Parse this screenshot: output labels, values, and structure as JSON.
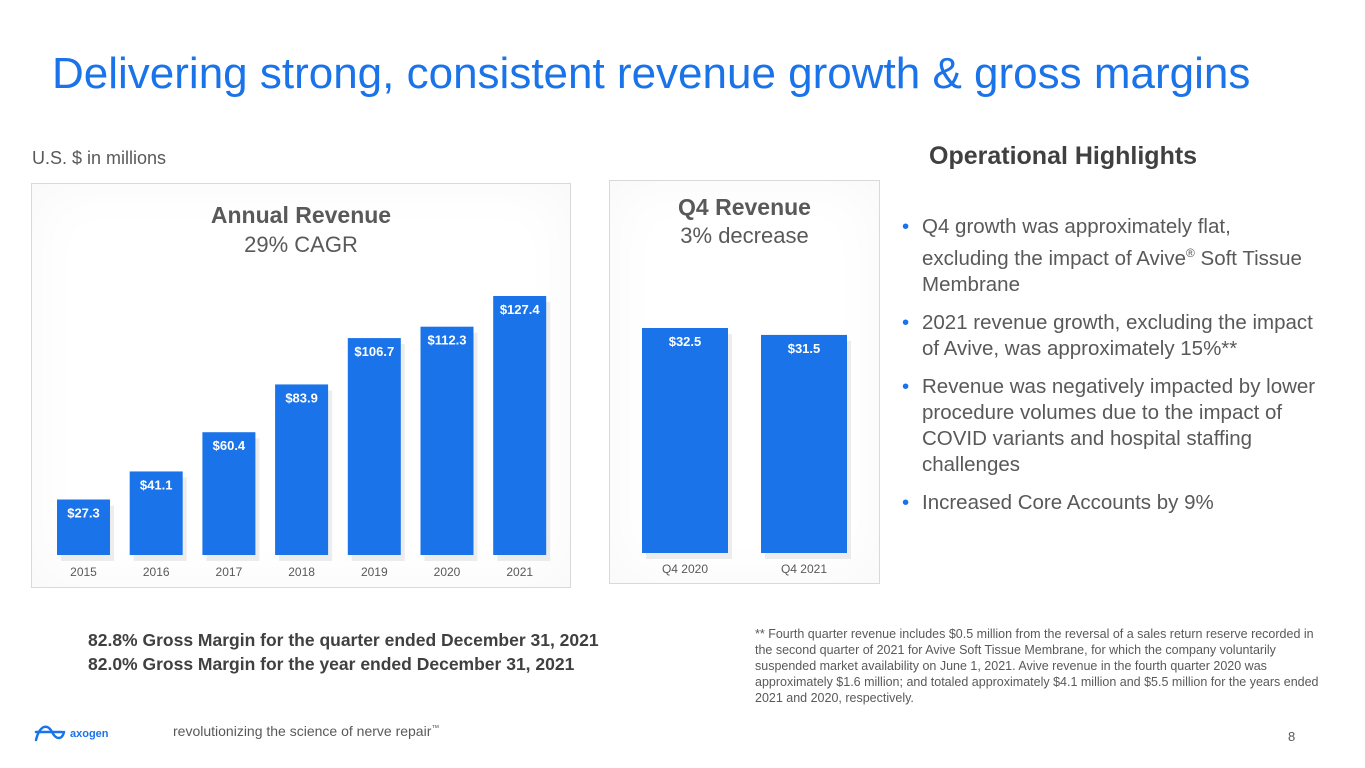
{
  "slide": {
    "title": "Delivering strong, consistent revenue growth & gross margins",
    "units": "U.S. $ in millions",
    "page_number": "8",
    "tagline": "revolutionizing the science of nerve repair",
    "tagline_mark": "™",
    "logo_text": "axogen"
  },
  "annual_chart": {
    "title": "Annual Revenue",
    "subtitle": "29% CAGR"
  },
  "q4_chart": {
    "title": "Q4 Revenue",
    "subtitle": "3% decrease"
  },
  "chart_data": [
    {
      "type": "bar",
      "title": "Annual Revenue",
      "subtitle": "29% CAGR",
      "categories": [
        "2015",
        "2016",
        "2017",
        "2018",
        "2019",
        "2020",
        "2021"
      ],
      "values": [
        27.3,
        41.1,
        60.4,
        83.9,
        106.7,
        112.3,
        127.4
      ],
      "labels": [
        "$27.3",
        "$41.1",
        "$60.4",
        "$83.9",
        "$106.7",
        "$112.3",
        "$127.4"
      ],
      "ylim": [
        0,
        127.4
      ],
      "color": "#1a73e8",
      "grid": false
    },
    {
      "type": "bar",
      "title": "Q4 Revenue",
      "subtitle": "3% decrease",
      "categories": [
        "Q4 2020",
        "Q4 2021"
      ],
      "values": [
        32.5,
        31.5
      ],
      "labels": [
        "$32.5",
        "$31.5"
      ],
      "ylim": [
        0,
        32.5
      ],
      "color": "#1a73e8",
      "grid": false
    }
  ],
  "highlights": {
    "title": "Operational Highlights",
    "bullets": [
      {
        "pre": "Q4 growth was approximately flat, excluding the impact of Avive",
        "mark": "®",
        "post": " Soft Tissue Membrane"
      },
      {
        "pre": "2021 revenue growth, excluding the impact of Avive, was approximately 15%**",
        "mark": "",
        "post": ""
      },
      {
        "pre": "Revenue was negatively impacted by lower procedure volumes due to the impact of COVID variants and hospital staffing challenges",
        "mark": "",
        "post": ""
      },
      {
        "pre": "Increased Core Accounts by 9%",
        "mark": "",
        "post": ""
      }
    ]
  },
  "gross_margin": {
    "quarter": "82.8% Gross Margin for the quarter ended December 31, 2021",
    "year": "82.0% Gross Margin for the year ended December 31, 2021"
  },
  "footnote": "** Fourth quarter revenue includes $0.5 million from the reversal of a sales return reserve recorded in the second quarter of 2021 for Avive Soft Tissue Membrane, for which the company voluntarily suspended market availability on June 1, 2021. Avive revenue in the fourth quarter 2020 was approximately $1.6 million; and totaled approximately $4.1 million and $5.5 million for the years ended 2021 and 2020, respectively."
}
